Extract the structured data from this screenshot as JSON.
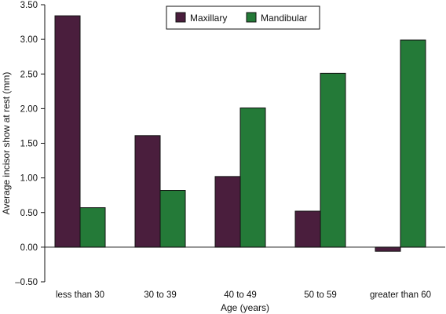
{
  "chart_data": {
    "type": "bar",
    "categories": [
      "less than 30",
      "30 to 39",
      "40 to 49",
      "50 to 59",
      "greater than 60"
    ],
    "series": [
      {
        "name": "Maxillary",
        "values": [
          3.34,
          1.61,
          1.02,
          0.52,
          -0.06
        ],
        "color": "#4a1e3d"
      },
      {
        "name": "Mandibular",
        "values": [
          0.57,
          0.82,
          2.01,
          2.51,
          2.99
        ],
        "color": "#247a38"
      }
    ],
    "xlabel": "Age (years)",
    "ylabel": "Average incisor show at rest (mm)",
    "ylim": [
      -0.5,
      3.5
    ],
    "yticks": [
      -0.5,
      0.0,
      0.5,
      1.0,
      1.5,
      2.0,
      2.5,
      3.0,
      3.5
    ],
    "ytick_labels": [
      "–0.50",
      "0.00",
      "0.50",
      "1.00",
      "1.50",
      "2.00",
      "2.50",
      "3.00",
      "3.50"
    ],
    "grid": false,
    "legend_position": "top-center"
  }
}
